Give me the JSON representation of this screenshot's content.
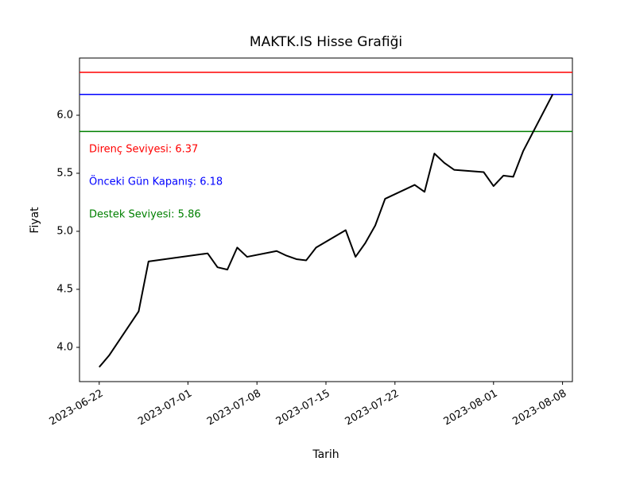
{
  "chart_data": {
    "type": "line",
    "title": "MAKTK.IS Hisse Grafiği",
    "xlabel": "Tarih",
    "ylabel": "Fiyat",
    "x": [
      "2023-06-22",
      "2023-06-23",
      "2023-06-26",
      "2023-06-27",
      "2023-07-03",
      "2023-07-04",
      "2023-07-05",
      "2023-07-06",
      "2023-07-07",
      "2023-07-10",
      "2023-07-11",
      "2023-07-12",
      "2023-07-13",
      "2023-07-14",
      "2023-07-17",
      "2023-07-18",
      "2023-07-19",
      "2023-07-20",
      "2023-07-21",
      "2023-07-24",
      "2023-07-25",
      "2023-07-26",
      "2023-07-27",
      "2023-07-28",
      "2023-07-31",
      "2023-08-01",
      "2023-08-02",
      "2023-08-03",
      "2023-08-04",
      "2023-08-07"
    ],
    "series": [
      {
        "color": "#000000",
        "values": [
          3.83,
          3.93,
          4.31,
          4.74,
          4.81,
          4.69,
          4.67,
          4.86,
          4.78,
          4.83,
          4.79,
          4.76,
          4.75,
          4.86,
          5.01,
          4.78,
          4.9,
          5.05,
          5.28,
          5.4,
          5.34,
          5.67,
          5.59,
          5.53,
          5.51,
          5.39,
          5.48,
          5.47,
          5.69,
          6.18
        ]
      }
    ],
    "hlines": [
      {
        "value": 6.37,
        "color": "#ff0000",
        "label": "Direnç Seviyesi: 6.37"
      },
      {
        "value": 6.18,
        "color": "#0000ff",
        "label": "Önceki Gün Kapanış: 6.18"
      },
      {
        "value": 5.86,
        "color": "#008000",
        "label": "Destek Seviyesi: 5.86"
      }
    ],
    "xlim": [
      "2023-06-20",
      "2023-08-09"
    ],
    "xticks": [
      "2023-06-22",
      "2023-07-01",
      "2023-07-08",
      "2023-07-15",
      "2023-07-22",
      "2023-08-01",
      "2023-08-08"
    ],
    "ylim": [
      3.705,
      6.493
    ],
    "yticks": [
      {
        "value": 4,
        "label": "4.0"
      },
      {
        "value": 4.5,
        "label": "4.5"
      },
      {
        "value": 5,
        "label": "5.0"
      },
      {
        "value": 5.5,
        "label": "5.5"
      },
      {
        "value": 6,
        "label": "6.0"
      }
    ],
    "grid": false
  }
}
